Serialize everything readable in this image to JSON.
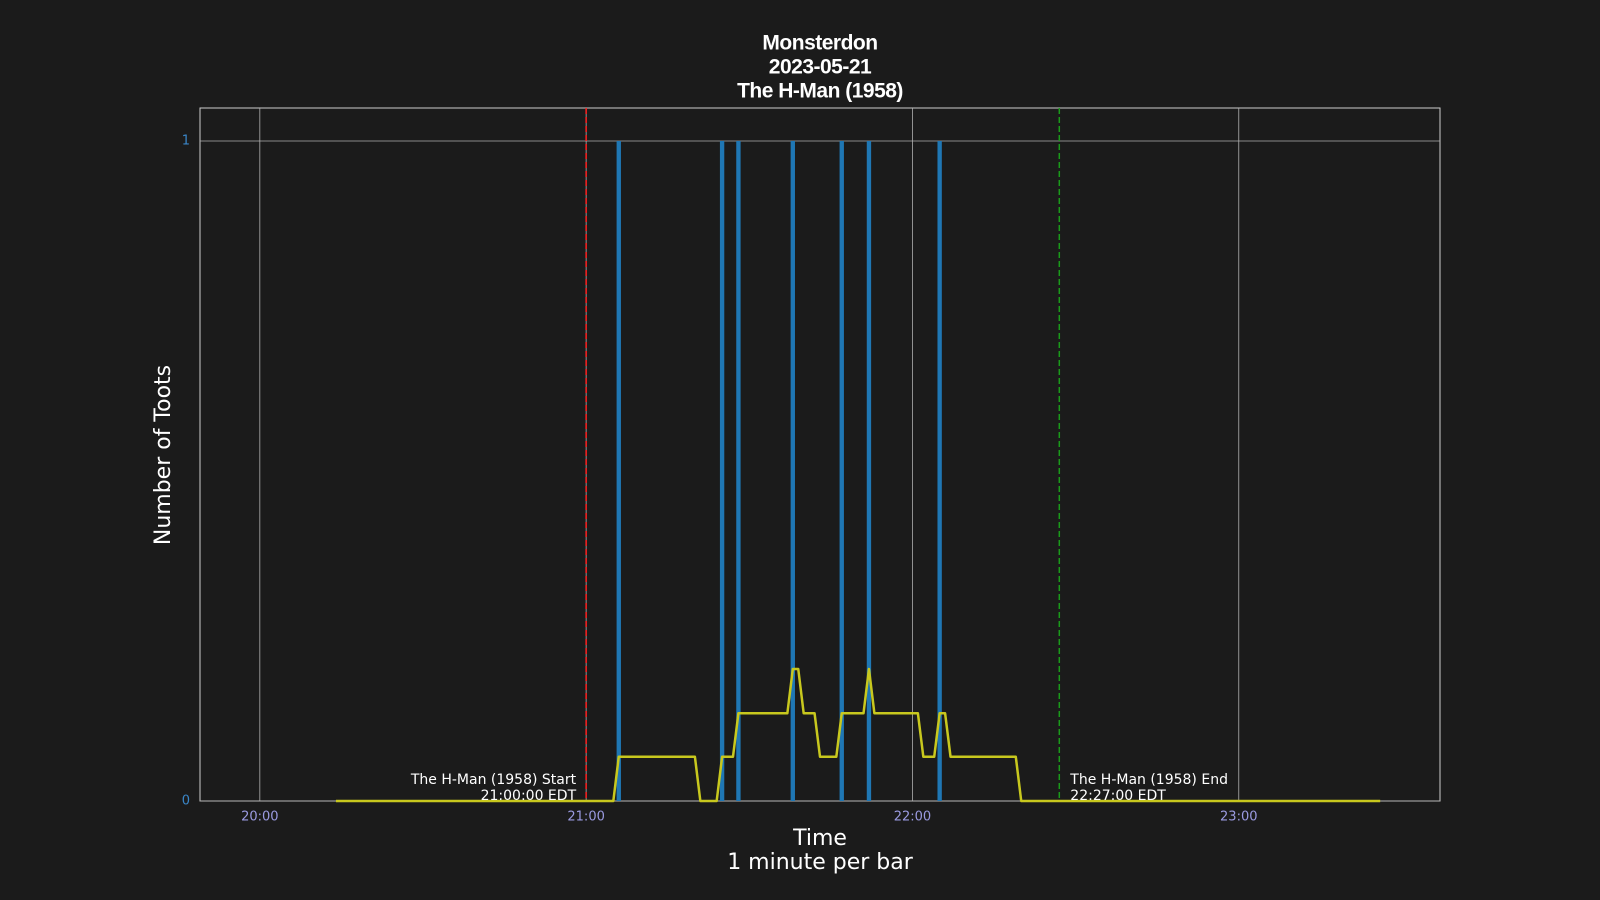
{
  "chart_data": {
    "type": "bar",
    "title": [
      "Monsterdon",
      "2023-05-21",
      "The H-Man (1958)"
    ],
    "x_label": [
      "Time",
      "1 minute per bar"
    ],
    "y_label": "Number of Toots",
    "xlim": [
      "19:49",
      "23:37"
    ],
    "xticks": [
      "20:00",
      "21:00",
      "22:00",
      "23:00"
    ],
    "ylim": [
      0,
      1.05
    ],
    "yticks": [
      0,
      1
    ],
    "grid": true,
    "series": [
      {
        "type": "bar",
        "color": "#1f77b4",
        "x": [
          "21:06",
          "21:25",
          "21:28",
          "21:38",
          "21:47",
          "21:52",
          "22:05"
        ],
        "values": [
          1,
          1,
          1,
          1,
          1,
          1,
          1
        ]
      },
      {
        "type": "line",
        "color": "#c8c81e",
        "x": [
          "20:14",
          "21:05",
          "21:06",
          "21:20",
          "21:21",
          "21:24",
          "21:25",
          "21:27",
          "21:28",
          "21:37",
          "21:38",
          "21:39",
          "21:40",
          "21:42",
          "21:43",
          "21:46",
          "21:47",
          "21:51",
          "21:52",
          "21:53",
          "22:01",
          "22:02",
          "22:04",
          "22:05",
          "22:06",
          "22:07",
          "22:19",
          "22:20",
          "23:26"
        ],
        "values": [
          0,
          0,
          0.067,
          0.067,
          0,
          0,
          0.067,
          0.067,
          0.133,
          0.133,
          0.2,
          0.2,
          0.133,
          0.133,
          0.067,
          0.067,
          0.133,
          0.133,
          0.2,
          0.133,
          0.133,
          0.067,
          0.067,
          0.133,
          0.133,
          0.067,
          0.067,
          0,
          0
        ]
      }
    ],
    "annotations": [
      {
        "x": "21:00",
        "color": "#ff2020",
        "lines": [
          "The H-Man (1958) Start",
          "21:00:00 EDT"
        ]
      },
      {
        "x": "22:27",
        "color": "#1a9a1a",
        "lines": [
          "The H-Man (1958) End",
          "22:27:00 EDT"
        ]
      }
    ]
  }
}
